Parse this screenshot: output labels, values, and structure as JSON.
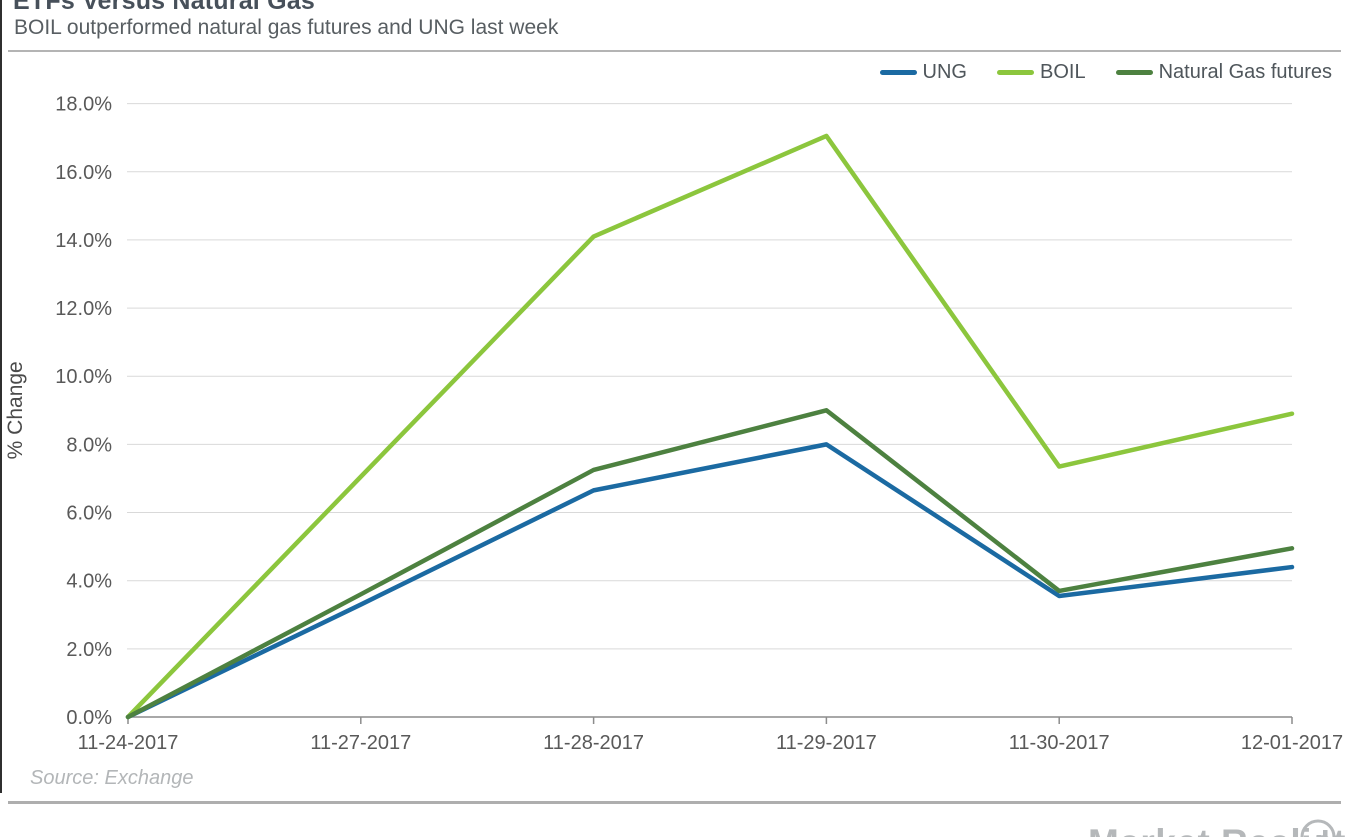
{
  "page": {
    "title": "ETFs Versus Natural Gas",
    "subtitle": "BOIL outperformed natural gas futures and UNG last week",
    "source": "Source: Exchange",
    "brand": "Market Realist"
  },
  "chart_data": {
    "type": "line",
    "title": "ETFs Versus Natural Gas",
    "categories": [
      "11-24-2017",
      "11-27-2017",
      "11-28-2017",
      "11-29-2017",
      "11-30-2017",
      "12-01-2017"
    ],
    "series": [
      {
        "name": "UNG",
        "color": "#1b6aa2",
        "values": [
          0.0,
          3.3,
          6.65,
          8.0,
          3.55,
          4.4
        ]
      },
      {
        "name": "BOIL",
        "color": "#8cc63d",
        "values": [
          0.0,
          7.05,
          14.1,
          17.05,
          7.35,
          8.9
        ]
      },
      {
        "name": "Natural Gas futures",
        "color": "#4d8140",
        "values": [
          0.0,
          3.6,
          7.25,
          9.0,
          3.7,
          4.95
        ]
      }
    ],
    "xlabel": "",
    "ylabel": "% Change",
    "ylim": [
      0,
      18
    ],
    "ytick_step": 2,
    "ytick_labels": [
      "0.0%",
      "2.0%",
      "4.0%",
      "6.0%",
      "8.0%",
      "10.0%",
      "12.0%",
      "14.0%",
      "16.0%",
      "18.0%"
    ],
    "grid": true,
    "legend_position": "top-right"
  },
  "style": {
    "grid_color": "#d9d9d9",
    "axis_color": "#8c8c8c",
    "tick_text_color": "#595959",
    "ylabel_color": "#4a4a4a",
    "line_width": 4.5
  }
}
